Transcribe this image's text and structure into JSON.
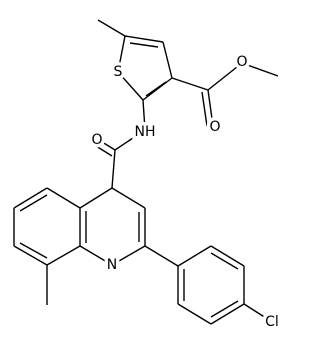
{
  "atoms": [
    "S",
    "O",
    "O",
    "NH",
    "O",
    "N",
    "Cl"
  ]
}
